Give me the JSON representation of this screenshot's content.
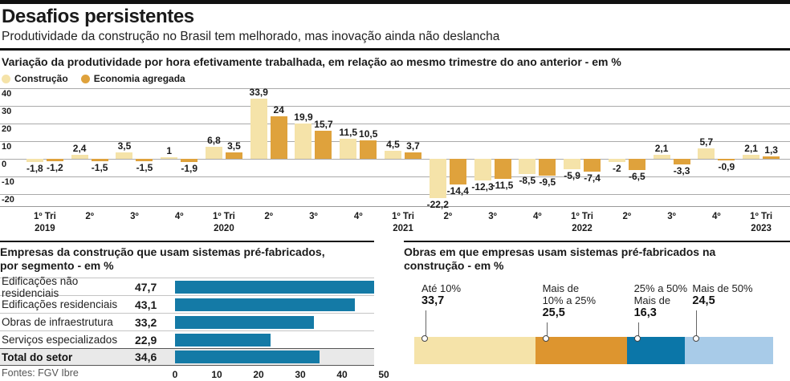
{
  "header": {
    "title": "Desafios persistentes",
    "subtitle": "Produtividade da construção no Brasil tem melhorado, mas inovação ainda não deslancha"
  },
  "footer": {
    "sources": "Fontes: FGV Ibre"
  },
  "chart_data": [
    {
      "type": "bar",
      "title": "Variação da produtividade por hora efetivamente trabalhada, em relação ao mesmo trimestre do ano anterior - em %",
      "grid": true,
      "legend_position": "top-left",
      "ylim": [
        -27.3,
        40
      ],
      "yticks": [
        40,
        30,
        20,
        10,
        0,
        -10,
        -20
      ],
      "categories": [
        {
          "label": "1º Tri",
          "year": "2019"
        },
        {
          "label": "2º",
          "year": ""
        },
        {
          "label": "3º",
          "year": ""
        },
        {
          "label": "4º",
          "year": ""
        },
        {
          "label": "1º Tri",
          "year": "2020"
        },
        {
          "label": "2º",
          "year": ""
        },
        {
          "label": "3º",
          "year": ""
        },
        {
          "label": "4º",
          "year": ""
        },
        {
          "label": "1º Tri",
          "year": "2021"
        },
        {
          "label": "2º",
          "year": ""
        },
        {
          "label": "3º",
          "year": ""
        },
        {
          "label": "4º",
          "year": ""
        },
        {
          "label": "1º Tri",
          "year": "2022"
        },
        {
          "label": "2º",
          "year": ""
        },
        {
          "label": "3º",
          "year": ""
        },
        {
          "label": "4º",
          "year": ""
        },
        {
          "label": "1º Tri",
          "year": "2023"
        }
      ],
      "series": [
        {
          "name": "Construção",
          "color": "#f5e3a9",
          "values": [
            -1.8,
            2.4,
            3.5,
            1,
            6.8,
            33.9,
            19.9,
            11.5,
            4.5,
            -22.2,
            -12.3,
            -8.5,
            -5.9,
            -2,
            2.1,
            5.7,
            2.1
          ],
          "labels": [
            "-1,8",
            "2,4",
            "3,5",
            "1",
            "6,8",
            "33,9",
            "19,9",
            "11,5",
            "4,5",
            "-22,2",
            "-12,3",
            "-8,5",
            "-5,9",
            "-2",
            "2,1",
            "5,7",
            "2,1"
          ]
        },
        {
          "name": "Economia agregada",
          "color": "#dfa23c",
          "values": [
            -1.2,
            -1.5,
            -1.5,
            -1.9,
            3.5,
            24,
            15.7,
            10.5,
            3.7,
            -14.4,
            -11.5,
            -9.5,
            -7.4,
            -6.5,
            -3.3,
            -0.9,
            1.3
          ],
          "labels": [
            "-1,2",
            "-1,5",
            "-1,5",
            "-1,9",
            "3,5",
            "24",
            "15,7",
            "10,5",
            "3,7",
            "-14,4",
            "-11,5",
            "-9,5",
            "-7,4",
            "-6,5",
            "-3,3",
            "-0,9",
            "1,3"
          ]
        }
      ]
    },
    {
      "type": "bar-horizontal",
      "title_lines": [
        "Empresas da construção que usam sistemas pré-fabricados,",
        "por segmento - em %"
      ],
      "bar_color": "#147aa6",
      "xlim": [
        0,
        50
      ],
      "xticks": [
        0,
        10,
        20,
        30,
        40,
        50
      ],
      "rows": [
        {
          "label": "Edificações não residenciais",
          "value": 47.7,
          "value_label": "47,7",
          "highlight": false
        },
        {
          "label": "Edificações residenciais",
          "value": 43.1,
          "value_label": "43,1",
          "highlight": false
        },
        {
          "label": "Obras de infraestrutura",
          "value": 33.2,
          "value_label": "33,2",
          "highlight": false
        },
        {
          "label": "Serviços especializados",
          "value": 22.9,
          "value_label": "22,9",
          "highlight": false
        },
        {
          "label": "Total do setor",
          "value": 34.6,
          "value_label": "34,6",
          "highlight": true
        }
      ]
    },
    {
      "type": "stacked-bar",
      "title_lines": [
        "Obras em que empresas usam sistemas pré-fabricados na",
        "construção - em %"
      ],
      "segments": [
        {
          "label_lines": [
            "Até 10%"
          ],
          "value": 33.7,
          "value_label": "33,7",
          "color": "#f5e3a9"
        },
        {
          "label_lines": [
            "Mais de",
            "10% a 25%"
          ],
          "value": 25.5,
          "value_label": "25,5",
          "color": "#dd952f"
        },
        {
          "label_lines": [
            "25% a 50%",
            "Mais de"
          ],
          "value": 16.3,
          "value_label": "16,3",
          "color": "#0b76a8"
        },
        {
          "label_lines": [
            "Mais de 50%"
          ],
          "value": 24.5,
          "value_label": "24,5",
          "color": "#a8cbe8"
        }
      ]
    }
  ]
}
